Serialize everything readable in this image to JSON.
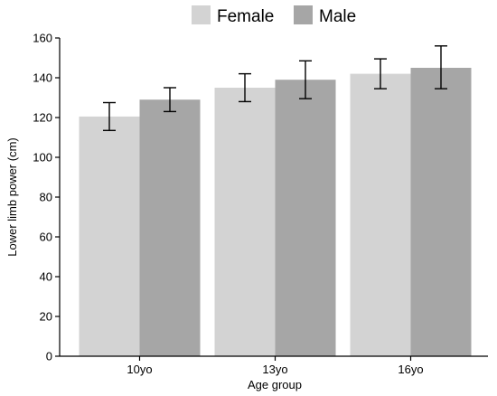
{
  "chart_data": {
    "type": "bar",
    "categories": [
      "10yo",
      "13yo",
      "16yo"
    ],
    "series": [
      {
        "name": "Female",
        "color": "#d3d3d3",
        "values": [
          120.5,
          135.0,
          142.0
        ],
        "error_low": [
          113.5,
          128.0,
          134.5
        ],
        "error_high": [
          127.5,
          142.0,
          149.5
        ]
      },
      {
        "name": "Male",
        "color": "#a6a6a6",
        "values": [
          129.0,
          139.0,
          145.0
        ],
        "error_low": [
          123.0,
          129.5,
          134.5
        ],
        "error_high": [
          135.0,
          148.5,
          156.0
        ]
      }
    ],
    "xlabel": "Age group",
    "ylabel": "Lower limb power (cm)",
    "ylim": [
      0,
      160
    ],
    "yticks": [
      0,
      20,
      40,
      60,
      80,
      100,
      120,
      140,
      160
    ],
    "grid": false,
    "legend_position": "top"
  }
}
